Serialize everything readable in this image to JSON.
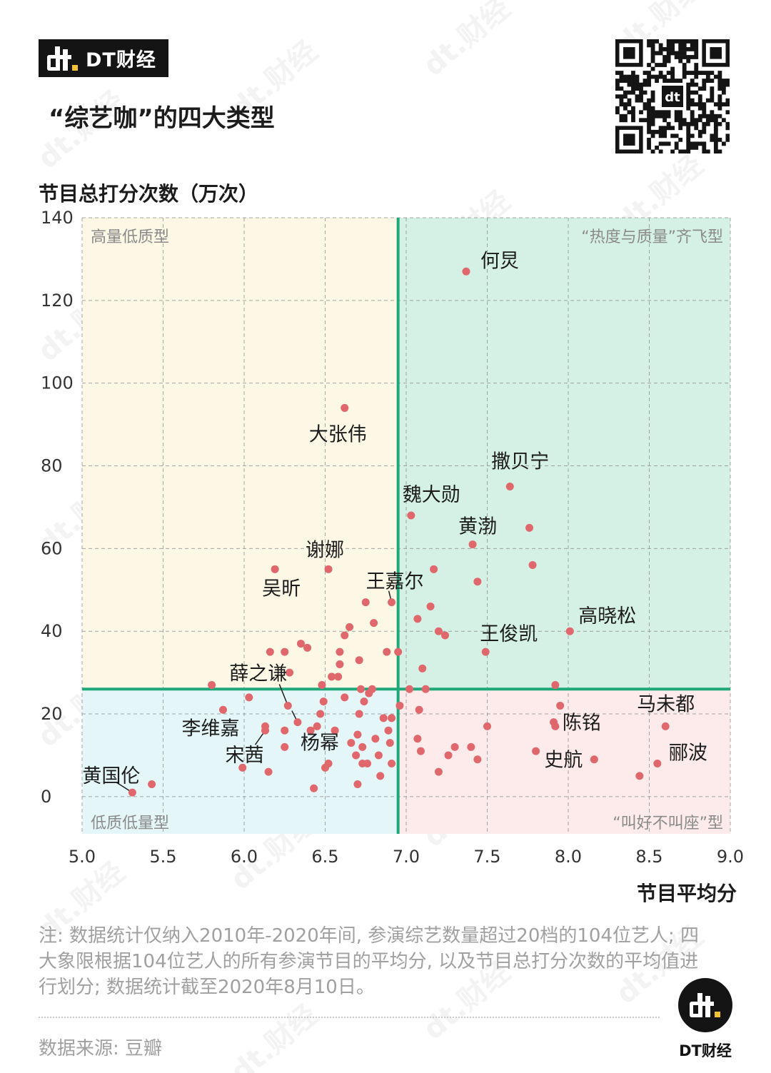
{
  "brand": {
    "name": "DT财经",
    "logo_mark": "dt-logo-mark",
    "accent": "#f2c230"
  },
  "title": "“综艺咖”的四大类型",
  "qr_code": "qr-code",
  "footer": {
    "note": "注: 数据统计仅纳入2010年-2020年间, 参演综艺数量超过20档的104位艺人; 四大象限根据104位艺人的所有参演节目的平均分, 以及节目总打分次数的平均值进行划分; 数据统计截至2020年8月10日。",
    "source": "数据来源: 豆瓣",
    "brand_name": "DT财经"
  },
  "watermark_text": "dt.财经",
  "chart_data": {
    "type": "scatter",
    "title": "“综艺咖”的四大类型",
    "xlabel": "节目平均分",
    "ylabel": "节目总打分次数（万次）",
    "xlim": [
      5.0,
      9.0
    ],
    "ylim": [
      -9,
      140
    ],
    "x_ticks": [
      5.0,
      5.5,
      6.0,
      6.5,
      7.0,
      7.5,
      8.0,
      8.5,
      9.0
    ],
    "x_tick_labels": [
      "5.0",
      "5.5",
      "6.0",
      "6.5",
      "7.0",
      "7.5",
      "8.0",
      "8.5",
      "9.0"
    ],
    "y_ticks": [
      0,
      20,
      40,
      60,
      80,
      100,
      120,
      140
    ],
    "y_tick_labels": [
      "0",
      "20",
      "40",
      "60",
      "80",
      "100",
      "120",
      "140"
    ],
    "grid": true,
    "mean_x": 6.95,
    "mean_y": 26,
    "colors": {
      "point": "#e0676b",
      "divider": "#1fa87a",
      "quadrant_high_low": "#fdf7e6",
      "quadrant_high_high": "#d5f1e5",
      "quadrant_low_low": "#e4f6f7",
      "quadrant_low_high": "#fcebea"
    },
    "quadrants": {
      "top_left": "高量低质型",
      "top_right": "“热度与质量”齐飞型",
      "bottom_left": "低质低量型",
      "bottom_right": "“叫好不叫座”型"
    },
    "labeled_points": [
      {
        "name": "何炅",
        "x": 7.37,
        "y": 127
      },
      {
        "name": "大张伟",
        "x": 6.62,
        "y": 94
      },
      {
        "name": "撒贝宁",
        "x": 7.64,
        "y": 75
      },
      {
        "name": "魏大勋",
        "x": 7.03,
        "y": 68
      },
      {
        "name": "黄渤",
        "x": 7.41,
        "y": 61
      },
      {
        "name": "谢娜",
        "x": 6.52,
        "y": 55
      },
      {
        "name": "吴昕",
        "x": 6.19,
        "y": 55
      },
      {
        "name": "王嘉尔",
        "x": 6.91,
        "y": 47
      },
      {
        "name": "高晓松",
        "x": 8.01,
        "y": 40
      },
      {
        "name": "王俊凯",
        "x": 7.49,
        "y": 35
      },
      {
        "name": "薛之谦",
        "x": 6.27,
        "y": 22
      },
      {
        "name": "马未都",
        "x": 8.6,
        "y": 17
      },
      {
        "name": "陈铭",
        "x": 7.92,
        "y": 17
      },
      {
        "name": "李维嘉",
        "x": 6.13,
        "y": 17
      },
      {
        "name": "杨幂",
        "x": 6.33,
        "y": 18
      },
      {
        "name": "宋茜",
        "x": 6.13,
        "y": 16
      },
      {
        "name": "郦波",
        "x": 8.55,
        "y": 8
      },
      {
        "name": "史航",
        "x": 8.16,
        "y": 9
      },
      {
        "name": "黄国伦",
        "x": 5.31,
        "y": 1
      }
    ],
    "points": [
      {
        "x": 5.43,
        "y": 3
      },
      {
        "x": 5.8,
        "y": 27
      },
      {
        "x": 5.87,
        "y": 21
      },
      {
        "x": 5.99,
        "y": 7
      },
      {
        "x": 6.03,
        "y": 24
      },
      {
        "x": 6.15,
        "y": 6
      },
      {
        "x": 6.16,
        "y": 35
      },
      {
        "x": 6.25,
        "y": 35
      },
      {
        "x": 6.25,
        "y": 16
      },
      {
        "x": 6.25,
        "y": 12
      },
      {
        "x": 6.28,
        "y": 30
      },
      {
        "x": 6.35,
        "y": 37
      },
      {
        "x": 6.39,
        "y": 36
      },
      {
        "x": 6.41,
        "y": 16
      },
      {
        "x": 6.43,
        "y": 2
      },
      {
        "x": 6.45,
        "y": 17
      },
      {
        "x": 6.47,
        "y": 20
      },
      {
        "x": 6.48,
        "y": 27
      },
      {
        "x": 6.49,
        "y": 23
      },
      {
        "x": 6.5,
        "y": 7
      },
      {
        "x": 6.52,
        "y": 8
      },
      {
        "x": 6.54,
        "y": 29
      },
      {
        "x": 6.56,
        "y": 16
      },
      {
        "x": 6.58,
        "y": 29
      },
      {
        "x": 6.59,
        "y": 35
      },
      {
        "x": 6.59,
        "y": 32
      },
      {
        "x": 6.62,
        "y": 39
      },
      {
        "x": 6.62,
        "y": 24
      },
      {
        "x": 6.65,
        "y": 41
      },
      {
        "x": 6.66,
        "y": 13
      },
      {
        "x": 6.69,
        "y": 10
      },
      {
        "x": 6.7,
        "y": 15
      },
      {
        "x": 6.7,
        "y": 3
      },
      {
        "x": 6.71,
        "y": 33
      },
      {
        "x": 6.71,
        "y": 20
      },
      {
        "x": 6.72,
        "y": 26
      },
      {
        "x": 6.73,
        "y": 8
      },
      {
        "x": 6.73,
        "y": 12
      },
      {
        "x": 6.74,
        "y": 23
      },
      {
        "x": 6.75,
        "y": 47
      },
      {
        "x": 6.76,
        "y": 8
      },
      {
        "x": 6.77,
        "y": 25
      },
      {
        "x": 6.79,
        "y": 26
      },
      {
        "x": 6.8,
        "y": 42
      },
      {
        "x": 6.81,
        "y": 14
      },
      {
        "x": 6.83,
        "y": 10
      },
      {
        "x": 6.84,
        "y": 5
      },
      {
        "x": 6.86,
        "y": 19
      },
      {
        "x": 6.88,
        "y": 35
      },
      {
        "x": 6.89,
        "y": 16
      },
      {
        "x": 6.9,
        "y": 13
      },
      {
        "x": 6.91,
        "y": 8
      },
      {
        "x": 6.91,
        "y": 19
      },
      {
        "x": 6.95,
        "y": 35
      },
      {
        "x": 6.96,
        "y": 22
      },
      {
        "x": 7.02,
        "y": 26
      },
      {
        "x": 7.07,
        "y": 43
      },
      {
        "x": 7.07,
        "y": 14
      },
      {
        "x": 7.08,
        "y": 21
      },
      {
        "x": 7.09,
        "y": 11
      },
      {
        "x": 7.1,
        "y": 31
      },
      {
        "x": 7.12,
        "y": 26
      },
      {
        "x": 7.15,
        "y": 46
      },
      {
        "x": 7.17,
        "y": 55
      },
      {
        "x": 7.2,
        "y": 6
      },
      {
        "x": 7.2,
        "y": 40
      },
      {
        "x": 7.24,
        "y": 39
      },
      {
        "x": 7.26,
        "y": 10
      },
      {
        "x": 7.3,
        "y": 12
      },
      {
        "x": 7.4,
        "y": 12
      },
      {
        "x": 7.44,
        "y": 52
      },
      {
        "x": 7.44,
        "y": 9
      },
      {
        "x": 7.5,
        "y": 17
      },
      {
        "x": 7.76,
        "y": 65
      },
      {
        "x": 7.78,
        "y": 56
      },
      {
        "x": 7.8,
        "y": 11
      },
      {
        "x": 7.92,
        "y": 27
      },
      {
        "x": 7.91,
        "y": 18
      },
      {
        "x": 7.95,
        "y": 22
      },
      {
        "x": 8.44,
        "y": 5
      }
    ]
  }
}
